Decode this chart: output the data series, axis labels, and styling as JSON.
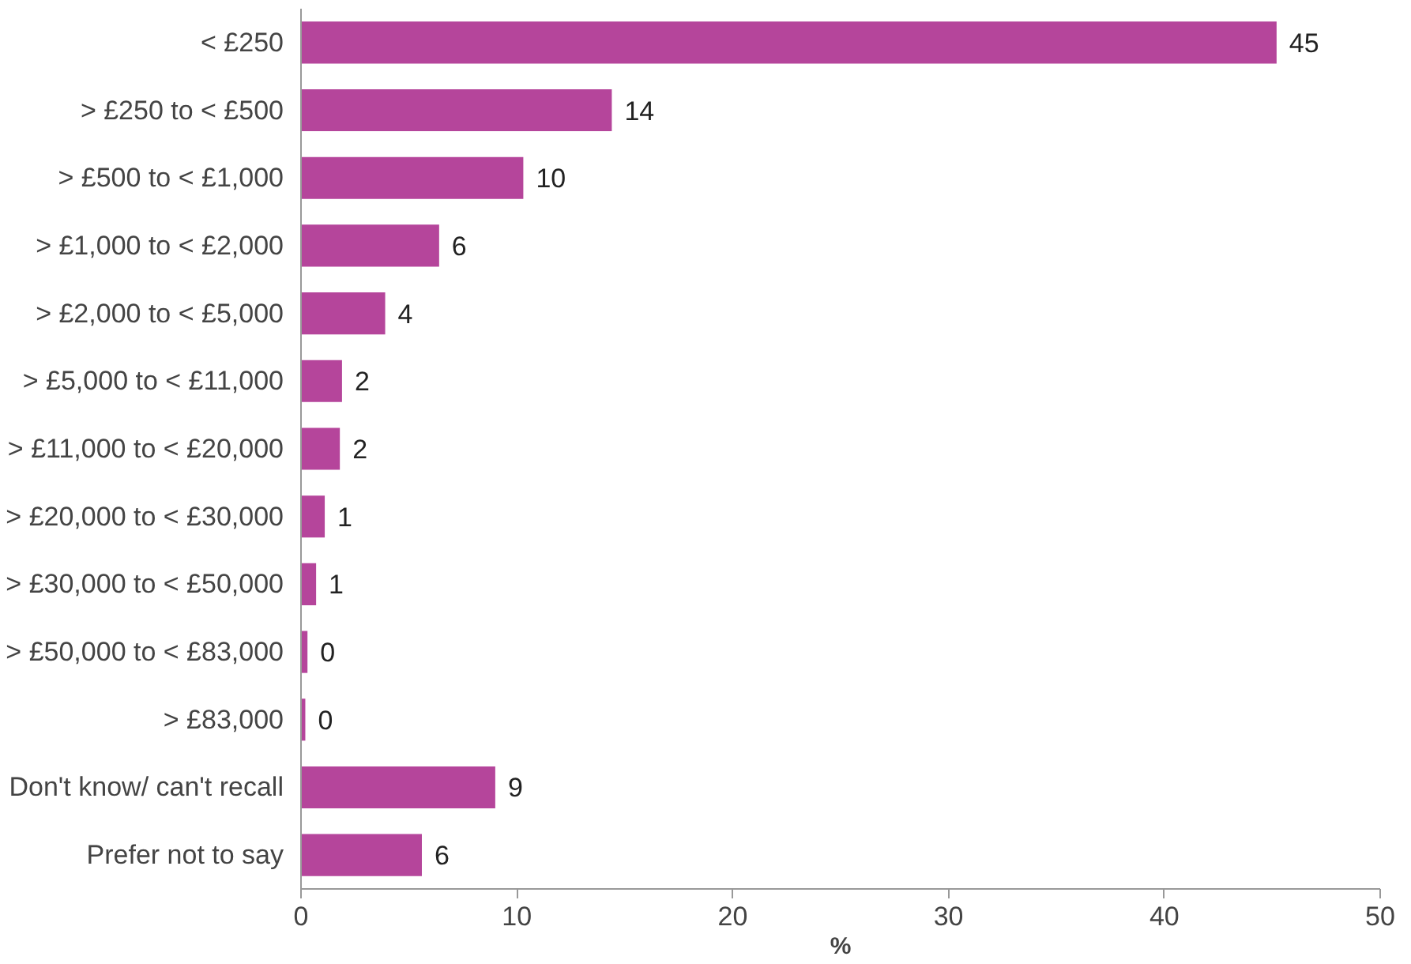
{
  "chart_data": {
    "type": "bar",
    "orientation": "horizontal",
    "xlabel": "%",
    "categories": [
      "< £250",
      "> £250 to < £500",
      "> £500 to < £1,000",
      "> £1,000 to < £2,000",
      "> £2,000 to < £5,000",
      "> £5,000 to < £11,000",
      "> £11,000 to < £20,000",
      "> £20,000 to < £30,000",
      "> £30,000 to < £50,000",
      "> £50,000 to < £83,000",
      "> £83,000",
      "Don't know/ can't recall",
      "Prefer not to say"
    ],
    "values": [
      45.2,
      14.4,
      10.3,
      6.4,
      3.9,
      1.9,
      1.8,
      1.1,
      0.7,
      0.3,
      0.2,
      9.0,
      5.6
    ],
    "value_labels": [
      "45",
      "14",
      "10",
      "6",
      "4",
      "2",
      "2",
      "1",
      "1",
      "0",
      "0",
      "9",
      "6"
    ],
    "color": "#b5459b",
    "xlim": [
      0,
      50
    ],
    "xticks": [
      0,
      10,
      20,
      30,
      40,
      50
    ],
    "grid": false
  }
}
